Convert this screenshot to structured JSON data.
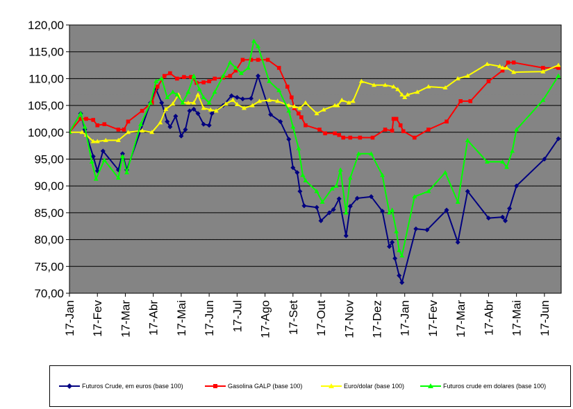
{
  "chart_data": {
    "type": "line",
    "title": "",
    "xlabel": "",
    "ylabel": "",
    "ylim": [
      70,
      120
    ],
    "y_ticks": [
      "70,00",
      "75,00",
      "80,00",
      "85,00",
      "90,00",
      "95,00",
      "100,00",
      "105,00",
      "110,00",
      "115,00",
      "120,00"
    ],
    "x_ticks": [
      "17-Jan",
      "17-Fev",
      "17-Mar",
      "17-Abr",
      "17-Mai",
      "17-Jun",
      "17-Jul",
      "17-Ago",
      "17-Set",
      "17-Out",
      "17-Nov",
      "17-Dez",
      "17-Jan",
      "17-Fev",
      "17-Mar",
      "17-Abr",
      "17-Mai",
      "17-Jun"
    ],
    "x_unit": "months since first 17-Jan tick",
    "xlim": [
      0,
      17.6
    ],
    "grid": true,
    "plot_background": "#808080",
    "legend_position": "bottom",
    "series": [
      {
        "name": "Futuros Crude, em euros (base 100)",
        "color": "#000080",
        "marker": "diamond",
        "points": [
          [
            0,
            100
          ],
          [
            0.4,
            103.5
          ],
          [
            0.55,
            100.5
          ],
          [
            0.85,
            95.5
          ],
          [
            1.0,
            92.8
          ],
          [
            1.2,
            96.5
          ],
          [
            1.75,
            93.0
          ],
          [
            1.9,
            96.0
          ],
          [
            2.05,
            93.0
          ],
          [
            2.9,
            105.5
          ],
          [
            3.1,
            108.0
          ],
          [
            3.3,
            105.5
          ],
          [
            3.5,
            102.0
          ],
          [
            3.6,
            101.0
          ],
          [
            3.8,
            103.0
          ],
          [
            4.0,
            99.3
          ],
          [
            4.15,
            100.5
          ],
          [
            4.3,
            104.0
          ],
          [
            4.45,
            104.3
          ],
          [
            4.6,
            103.5
          ],
          [
            4.8,
            101.5
          ],
          [
            5.0,
            101.3
          ],
          [
            5.1,
            103.5
          ],
          [
            5.5,
            105.0
          ],
          [
            5.8,
            106.8
          ],
          [
            6.0,
            106.5
          ],
          [
            6.2,
            106.2
          ],
          [
            6.5,
            106.3
          ],
          [
            6.75,
            110.5
          ],
          [
            7.2,
            103.3
          ],
          [
            7.55,
            102.0
          ],
          [
            7.85,
            98.7
          ],
          [
            8.0,
            93.4
          ],
          [
            8.15,
            92.5
          ],
          [
            8.25,
            89.0
          ],
          [
            8.4,
            86.3
          ],
          [
            8.85,
            86.0
          ],
          [
            9.0,
            83.5
          ],
          [
            9.3,
            85.0
          ],
          [
            9.45,
            85.6
          ],
          [
            9.65,
            87.6
          ],
          [
            9.9,
            80.7
          ],
          [
            10.05,
            86.2
          ],
          [
            10.3,
            87.7
          ],
          [
            10.8,
            88.0
          ],
          [
            11.2,
            85.3
          ],
          [
            11.45,
            78.7
          ],
          [
            11.55,
            79.5
          ],
          [
            11.65,
            76.5
          ],
          [
            11.8,
            73.3
          ],
          [
            11.9,
            72.0
          ],
          [
            12.4,
            82.0
          ],
          [
            12.8,
            81.8
          ],
          [
            13.5,
            85.5
          ],
          [
            13.9,
            79.5
          ],
          [
            14.25,
            89.0
          ],
          [
            15.0,
            84.0
          ],
          [
            15.5,
            84.2
          ],
          [
            15.6,
            83.5
          ],
          [
            15.75,
            85.8
          ],
          [
            16.0,
            90.0
          ],
          [
            17.0,
            95.0
          ],
          [
            17.5,
            98.8
          ]
        ]
      },
      {
        "name": "Gasolina GALP (base 100)",
        "color": "#ff0000",
        "marker": "square",
        "points": [
          [
            0,
            100
          ],
          [
            0.4,
            102.5
          ],
          [
            0.6,
            102.5
          ],
          [
            0.85,
            102.3
          ],
          [
            1.0,
            101.3
          ],
          [
            1.25,
            101.5
          ],
          [
            1.75,
            100.5
          ],
          [
            1.95,
            100.5
          ],
          [
            2.1,
            102.0
          ],
          [
            2.6,
            104.0
          ],
          [
            2.95,
            105.5
          ],
          [
            3.15,
            108.5
          ],
          [
            3.4,
            110.5
          ],
          [
            3.6,
            111.0
          ],
          [
            3.85,
            110.0
          ],
          [
            4.1,
            110.3
          ],
          [
            4.35,
            110.3
          ],
          [
            4.55,
            109.2
          ],
          [
            4.8,
            109.3
          ],
          [
            5.0,
            109.5
          ],
          [
            5.2,
            110.0
          ],
          [
            5.5,
            110.2
          ],
          [
            5.75,
            110.5
          ],
          [
            5.95,
            111.5
          ],
          [
            6.2,
            113.5
          ],
          [
            6.5,
            113.5
          ],
          [
            6.75,
            113.5
          ],
          [
            7.1,
            113.5
          ],
          [
            7.5,
            112.0
          ],
          [
            7.8,
            108.5
          ],
          [
            7.95,
            106.5
          ],
          [
            8.05,
            104.5
          ],
          [
            8.2,
            103.5
          ],
          [
            8.3,
            102.8
          ],
          [
            8.45,
            101.3
          ],
          [
            8.95,
            100.5
          ],
          [
            9.15,
            99.8
          ],
          [
            9.5,
            99.8
          ],
          [
            9.65,
            99.5
          ],
          [
            9.8,
            99.0
          ],
          [
            10.05,
            99.0
          ],
          [
            10.4,
            99.0
          ],
          [
            10.85,
            99.0
          ],
          [
            11.3,
            100.5
          ],
          [
            11.55,
            100.3
          ],
          [
            11.6,
            102.5
          ],
          [
            11.7,
            102.5
          ],
          [
            11.85,
            101.3
          ],
          [
            11.95,
            100.2
          ],
          [
            12.35,
            99.0
          ],
          [
            12.85,
            100.5
          ],
          [
            13.5,
            102.0
          ],
          [
            14.0,
            105.8
          ],
          [
            14.35,
            105.8
          ],
          [
            15.0,
            109.5
          ],
          [
            15.5,
            111.5
          ],
          [
            15.7,
            113.0
          ],
          [
            15.9,
            113.0
          ],
          [
            16.95,
            112.0
          ],
          [
            17.5,
            112.0
          ]
        ]
      },
      {
        "name": "Euro/dolar (base 100)",
        "color": "#ffff00",
        "marker": "triangle",
        "points": [
          [
            0,
            100
          ],
          [
            0.45,
            100.0
          ],
          [
            0.6,
            99.5
          ],
          [
            0.85,
            98.3
          ],
          [
            1.0,
            98.3
          ],
          [
            1.3,
            98.5
          ],
          [
            1.75,
            98.5
          ],
          [
            2.1,
            100.0
          ],
          [
            2.6,
            100.3
          ],
          [
            2.95,
            100.0
          ],
          [
            3.25,
            101.8
          ],
          [
            3.45,
            104.3
          ],
          [
            3.7,
            105.3
          ],
          [
            3.9,
            107.0
          ],
          [
            4.05,
            105.5
          ],
          [
            4.25,
            105.5
          ],
          [
            4.45,
            105.5
          ],
          [
            4.6,
            107.0
          ],
          [
            4.8,
            104.5
          ],
          [
            5.05,
            104.2
          ],
          [
            5.25,
            104.0
          ],
          [
            5.6,
            105.3
          ],
          [
            5.85,
            106.0
          ],
          [
            6.0,
            105.2
          ],
          [
            6.25,
            104.5
          ],
          [
            6.55,
            105.0
          ],
          [
            6.8,
            105.8
          ],
          [
            7.15,
            106.0
          ],
          [
            7.45,
            105.8
          ],
          [
            7.85,
            105.0
          ],
          [
            8.05,
            104.8
          ],
          [
            8.25,
            104.5
          ],
          [
            8.45,
            105.5
          ],
          [
            8.85,
            103.5
          ],
          [
            9.1,
            104.2
          ],
          [
            9.5,
            105.0
          ],
          [
            9.6,
            105.0
          ],
          [
            9.75,
            106.0
          ],
          [
            10.0,
            105.5
          ],
          [
            10.15,
            105.8
          ],
          [
            10.45,
            109.5
          ],
          [
            10.9,
            108.8
          ],
          [
            11.3,
            108.8
          ],
          [
            11.6,
            108.5
          ],
          [
            11.75,
            108.0
          ],
          [
            11.9,
            107.0
          ],
          [
            12.0,
            106.5
          ],
          [
            12.1,
            107.0
          ],
          [
            12.45,
            107.5
          ],
          [
            12.85,
            108.5
          ],
          [
            13.45,
            108.3
          ],
          [
            13.9,
            110.0
          ],
          [
            14.25,
            110.5
          ],
          [
            14.95,
            112.7
          ],
          [
            15.4,
            112.3
          ],
          [
            15.5,
            112.0
          ],
          [
            15.65,
            112.0
          ],
          [
            15.9,
            111.2
          ],
          [
            16.95,
            111.3
          ],
          [
            17.5,
            112.5
          ]
        ]
      },
      {
        "name": "Futuros crude em dolares (base 100)",
        "color": "#00ff00",
        "marker": "triangle",
        "points": [
          [
            0,
            100
          ],
          [
            0.4,
            103.5
          ],
          [
            0.55,
            101.0
          ],
          [
            0.8,
            94.5
          ],
          [
            0.95,
            91.3
          ],
          [
            1.25,
            94.8
          ],
          [
            1.75,
            91.5
          ],
          [
            1.9,
            95.5
          ],
          [
            2.05,
            92.5
          ],
          [
            2.55,
            101.5
          ],
          [
            2.9,
            105.5
          ],
          [
            3.1,
            109.5
          ],
          [
            3.3,
            110.0
          ],
          [
            3.5,
            106.5
          ],
          [
            3.7,
            107.5
          ],
          [
            3.85,
            107.0
          ],
          [
            4.05,
            105.5
          ],
          [
            4.25,
            107.5
          ],
          [
            4.45,
            110.5
          ],
          [
            4.65,
            108.0
          ],
          [
            4.8,
            106.5
          ],
          [
            5.0,
            105.5
          ],
          [
            5.2,
            107.5
          ],
          [
            5.5,
            110.5
          ],
          [
            5.75,
            113.0
          ],
          [
            5.95,
            112.0
          ],
          [
            6.15,
            111.0
          ],
          [
            6.4,
            112.0
          ],
          [
            6.6,
            117.0
          ],
          [
            6.75,
            116.0
          ],
          [
            7.15,
            109.5
          ],
          [
            7.5,
            107.8
          ],
          [
            7.85,
            104.0
          ],
          [
            8.0,
            101.0
          ],
          [
            8.2,
            97.0
          ],
          [
            8.35,
            92.0
          ],
          [
            8.45,
            91.0
          ],
          [
            8.85,
            89.0
          ],
          [
            9.05,
            87.0
          ],
          [
            9.4,
            89.5
          ],
          [
            9.55,
            90.0
          ],
          [
            9.7,
            93.0
          ],
          [
            9.9,
            85.0
          ],
          [
            10.05,
            91.5
          ],
          [
            10.35,
            96.0
          ],
          [
            10.8,
            96.0
          ],
          [
            11.2,
            92.0
          ],
          [
            11.45,
            85.0
          ],
          [
            11.55,
            85.5
          ],
          [
            11.7,
            81.5
          ],
          [
            11.8,
            78.0
          ],
          [
            11.9,
            77.0
          ],
          [
            12.35,
            88.0
          ],
          [
            12.85,
            89.0
          ],
          [
            13.45,
            92.5
          ],
          [
            13.9,
            87.0
          ],
          [
            14.25,
            98.5
          ],
          [
            14.95,
            94.5
          ],
          [
            15.5,
            94.5
          ],
          [
            15.65,
            93.5
          ],
          [
            15.85,
            96.5
          ],
          [
            16.0,
            100.5
          ],
          [
            16.95,
            106.0
          ],
          [
            17.5,
            110.5
          ]
        ]
      }
    ]
  }
}
